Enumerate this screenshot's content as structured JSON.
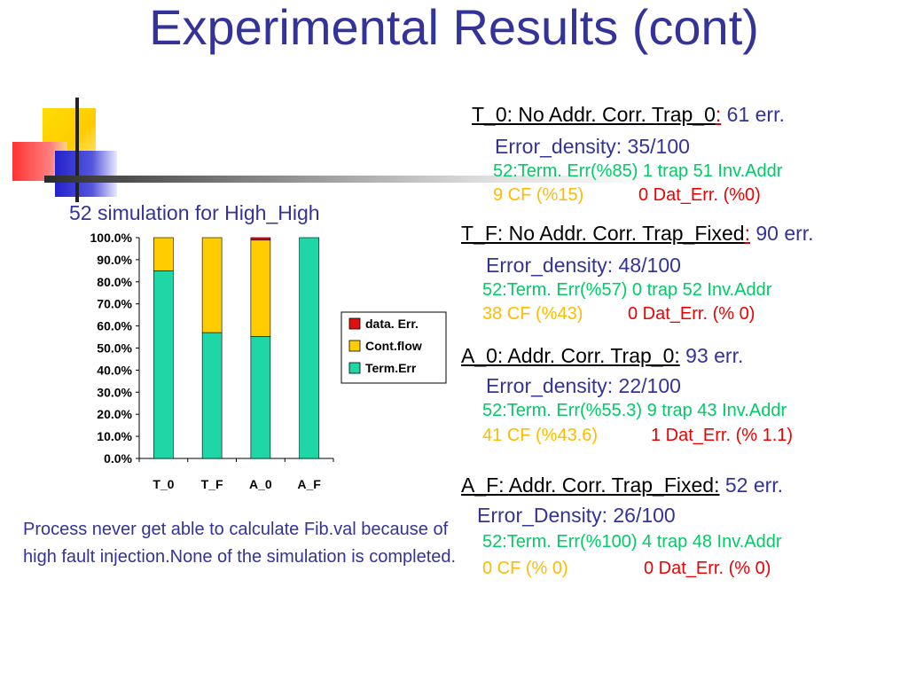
{
  "slide": {
    "title": "Experimental Results (cont)"
  },
  "chart_title": "52 simulation for High_High",
  "caption": "Process never get able to calculate Fib.val because of high fault injection.None of the simulation is completed.",
  "colors": {
    "term_err": "#1ed6a6",
    "cont_flow": "#ffcc00",
    "data_err": "#e01010",
    "title": "#333399"
  },
  "chart_data": {
    "type": "bar",
    "stacked": true,
    "percent": true,
    "categories": [
      "T_0",
      "T_F",
      "A_0",
      "A_F"
    ],
    "series": [
      {
        "name": "Term.Err",
        "values": [
          85,
          57,
          55.3,
          100
        ],
        "color": "#1ed6a6"
      },
      {
        "name": "Cont.flow",
        "values": [
          15,
          43,
          43.6,
          0
        ],
        "color": "#ffcc00"
      },
      {
        "name": "data. Err.",
        "values": [
          0,
          0,
          1.1,
          0
        ],
        "color": "#e01010"
      }
    ],
    "ylim": [
      0,
      100
    ],
    "yticks": [
      "0.0%",
      "10.0%",
      "20.0%",
      "30.0%",
      "40.0%",
      "50.0%",
      "60.0%",
      "70.0%",
      "80.0%",
      "90.0%",
      "100.0%"
    ],
    "legend": [
      "data. Err.",
      "Cont.flow",
      "Term.Err"
    ],
    "legend_position": "right"
  },
  "results": [
    {
      "heading": "T_0: No Addr. Corr. Trap_0",
      "colon": ":",
      "count": " 61 err.",
      "density": "Error_density: 35/100",
      "term": "52:Term. Err(%85) 1 trap 51 Inv.Addr",
      "cf": "9 CF (%15)",
      "dat": "0 Dat_Err. (%0)"
    },
    {
      "heading": "T_F: No Addr. Corr. Trap_Fixed",
      "colon": ":",
      "count": " 90 err.",
      "density": "Error_density: 48/100",
      "term": "52:Term. Err(%57) 0 trap 52 Inv.Addr",
      "cf": "38 CF (%43)",
      "dat": "0 Dat_Err. (% 0)"
    },
    {
      "heading": "A_0: Addr. Corr. Trap_0:",
      "colon": "",
      "count": " 93 err.",
      "density": "Error_density: 22/100",
      "term": "52:Term. Err(%55.3) 9 trap 43 Inv.Addr",
      "cf": "41 CF (%43.6)",
      "dat": "1 Dat_Err. (% 1.1)"
    },
    {
      "heading": "A_F: Addr. Corr. Trap_Fixed:",
      "colon": "",
      "count": " 52 err.",
      "density": "Error_Density: 26/100",
      "term": "52:Term. Err(%100) 4 trap 48 Inv.Addr",
      "cf": "0 CF (% 0)",
      "dat": "0 Dat_Err. (% 0)"
    }
  ]
}
